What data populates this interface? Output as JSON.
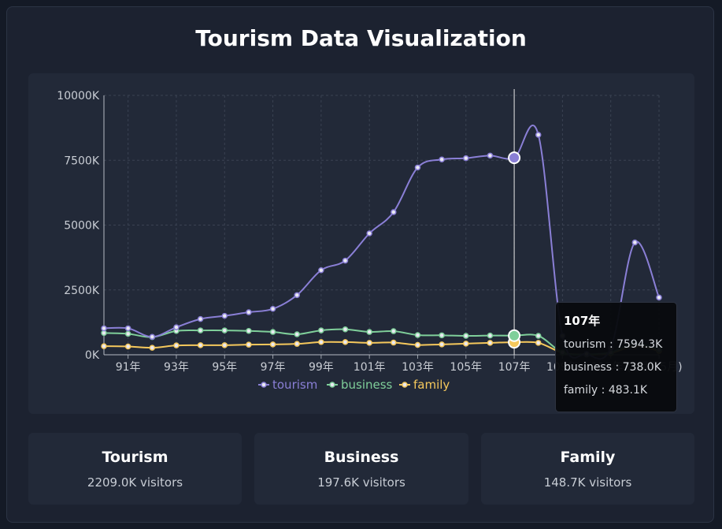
{
  "page": {
    "title": "Tourism Data Visualization"
  },
  "colors": {
    "tourism": "#8a7fd6",
    "business": "#7fcf9a",
    "family": "#f5c85c",
    "grid": "#3a4252",
    "axis_text": "#c9cdd4",
    "background": "#141a26"
  },
  "chart_data": {
    "type": "line",
    "title": "",
    "xlabel": "",
    "ylabel": "",
    "ylim": [
      0,
      10000
    ],
    "y_ticks": [
      0,
      2500,
      5000,
      7500,
      10000
    ],
    "y_tick_labels": [
      "0K",
      "2500K",
      "5000K",
      "7500K",
      "10000K"
    ],
    "x": [
      "90年",
      "91年",
      "92年",
      "93年",
      "94年",
      "95年",
      "96年",
      "97年",
      "98年",
      "99年",
      "100年",
      "101年",
      "102年",
      "103年",
      "104年",
      "105年",
      "106年",
      "107年",
      "108年",
      "109年",
      "110年",
      "111年",
      "112年",
      "113年 (1月至5月)"
    ],
    "x_tick_labels": [
      "91年",
      "93年",
      "95年",
      "97年",
      "99年",
      "101年",
      "103年",
      "105年",
      "107年",
      "109年",
      "113年 (1月至5月)"
    ],
    "grid": true,
    "legend_position": "bottom",
    "series": [
      {
        "name": "tourism",
        "values": [
          1020,
          1020,
          690,
          1060,
          1380,
          1500,
          1640,
          1770,
          2300,
          3260,
          3630,
          4680,
          5500,
          7220,
          7530,
          7580,
          7680,
          7594.3,
          8480,
          730,
          30,
          260,
          4330,
          2209
        ]
      },
      {
        "name": "business",
        "values": [
          840,
          810,
          680,
          920,
          940,
          940,
          920,
          880,
          790,
          940,
          980,
          880,
          910,
          760,
          750,
          730,
          740,
          738.0,
          730,
          90,
          20,
          90,
          430,
          197.6
        ]
      },
      {
        "name": "family",
        "values": [
          330,
          320,
          270,
          360,
          370,
          370,
          390,
          400,
          420,
          490,
          490,
          460,
          470,
          380,
          400,
          430,
          460,
          483.1,
          460,
          80,
          10,
          60,
          340,
          148.7
        ]
      }
    ],
    "tooltip": {
      "category": "107年",
      "rows": [
        {
          "label": "tourism : 7594.3K"
        },
        {
          "label": "business : 738.0K"
        },
        {
          "label": "family : 483.1K"
        }
      ]
    }
  },
  "stats": [
    {
      "title": "Tourism",
      "value": "2209.0K visitors"
    },
    {
      "title": "Business",
      "value": "197.6K visitors"
    },
    {
      "title": "Family",
      "value": "148.7K visitors"
    }
  ]
}
